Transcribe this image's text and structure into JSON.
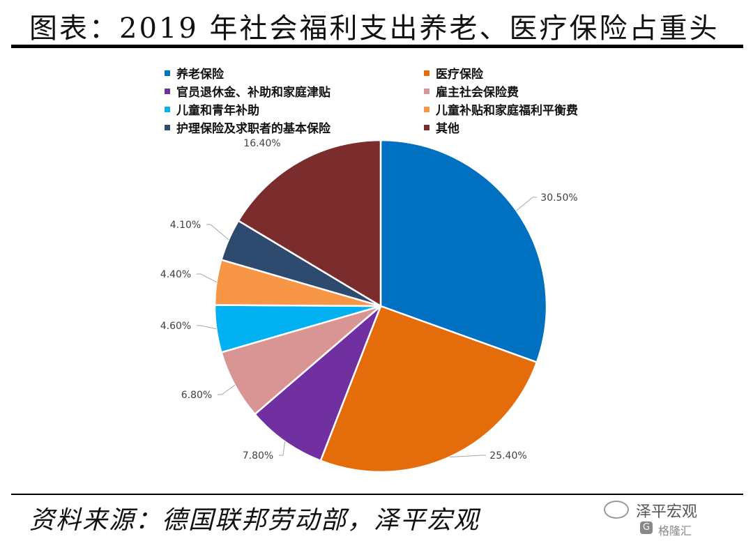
{
  "title": "图表：2019 年社会福利支出养老、医疗保险占重头",
  "source": "资料来源：德国联邦劳动部，泽平宏观",
  "watermark": {
    "name": "泽平宏观",
    "sub": "格隆汇",
    "badge": "G"
  },
  "chart_data": {
    "type": "pie",
    "unit": "%",
    "legend_placement": "top",
    "slices": [
      {
        "name": "养老保险",
        "value": 30.5,
        "label": "30.50%",
        "color": "#0070C0"
      },
      {
        "name": "医疗保险",
        "value": 25.4,
        "label": "25.40%",
        "color": "#E46C0A"
      },
      {
        "name": "官员退休金、补助和家庭津贴",
        "value": 7.8,
        "label": "7.80%",
        "color": "#7030A0"
      },
      {
        "name": "雇主社会保险费",
        "value": 6.8,
        "label": "6.80%",
        "color": "#D99594"
      },
      {
        "name": "儿童和青年补助",
        "value": 4.6,
        "label": "4.60%",
        "color": "#00B0F0"
      },
      {
        "name": "儿童补贴和家庭福利平衡费",
        "value": 4.4,
        "label": "4.40%",
        "color": "#F79646"
      },
      {
        "name": "护理保险及求职者的基本保险",
        "value": 4.1,
        "label": "4.10%",
        "color": "#2E4A6E"
      },
      {
        "name": "其他",
        "value": 16.4,
        "label": "16.40%",
        "color": "#7B2C2C"
      }
    ]
  }
}
